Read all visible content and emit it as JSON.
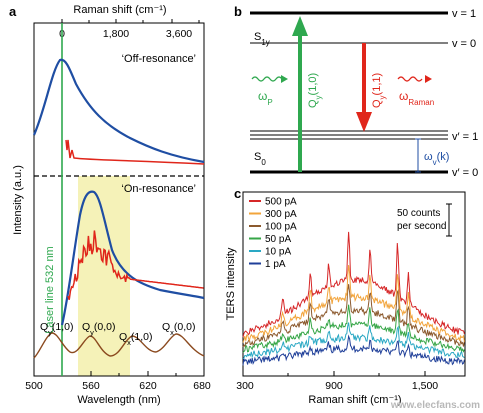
{
  "panel_a": {
    "letter": "a",
    "top_axis_label": "Raman shift (cm⁻¹)",
    "top_ticks": [
      "0",
      "1,800",
      "3,600"
    ],
    "bottom_axis_label": "Wavelength (nm)",
    "bottom_ticks": [
      "500",
      "560",
      "620",
      "680"
    ],
    "y_label": "Intensity (a.u.)",
    "off_label": "‘Off-resonance’",
    "on_label": "‘On-resonance’",
    "laser_label": "Laser line 532 nm",
    "absorption_labels": [
      "Q",
      "Q",
      "Q",
      "Q"
    ],
    "colors": {
      "blue": "#1f4ea3",
      "red": "#e0261b",
      "green": "#2fa84f",
      "brown": "#8b4a1f",
      "highlight": "#f3f0b4"
    }
  },
  "panel_b": {
    "letter": "b",
    "state_s1": "S",
    "state_s1_sub": "1y",
    "state_s0": "S",
    "state_s0_sub": "0",
    "levels_upper": [
      "v = 1",
      "v = 0"
    ],
    "levels_lower": [
      "v′ = 1",
      "v′ = 0"
    ],
    "omega_p": "ω",
    "omega_p_sub": "P",
    "omega_raman": "ω",
    "omega_raman_sub": "Raman",
    "qy10": "Q",
    "qy10_sub": "y",
    "qy10_rest": "(1,0)",
    "qy11": "Q",
    "qy11_sub": "y",
    "qy11_rest": "(1,1)",
    "omega_v": "ω",
    "omega_v_sub": "v",
    "omega_v_rest": "(k)"
  },
  "panel_c": {
    "letter": "c",
    "y_label": "TERS intensity",
    "x_label": "Raman shift (cm⁻¹)",
    "x_ticks": [
      "300",
      "900",
      "1,500"
    ],
    "scale_bar_label_1": "50 counts",
    "scale_bar_label_2": "per second"
  },
  "watermark": "www.elecfans.com",
  "chart_data": [
    {
      "type": "line",
      "panel": "a",
      "xlabel": "Wavelength (nm)",
      "x2label": "Raman shift (cm⁻¹)",
      "ylabel": "Intensity (a.u.)",
      "xlim": [
        500,
        680
      ],
      "x2_ticks": [
        0,
        1800,
        3600
      ],
      "laser_line_nm": 532,
      "highlight_nm": [
        548,
        573
      ],
      "series": [
        {
          "name": "Off-resonance (blue)",
          "x": [
            528,
            533,
            540,
            550,
            560,
            575,
            600,
            630,
            660,
            678
          ],
          "y": [
            0.5,
            0.95,
            0.92,
            0.75,
            0.55,
            0.4,
            0.25,
            0.15,
            0.08,
            0.05
          ]
        },
        {
          "name": "On-resonance (blue)",
          "x": [
            530,
            535,
            545,
            555,
            562,
            570,
            585,
            610,
            640,
            678
          ],
          "y": [
            0.05,
            0.2,
            0.55,
            0.85,
            0.92,
            0.8,
            0.5,
            0.3,
            0.2,
            0.15
          ]
        }
      ],
      "annotations": [
        "Q(1,0)",
        "Q(0,0)",
        "Q(1,0)",
        "Q(0,0)"
      ]
    },
    {
      "type": "line",
      "panel": "c",
      "xlabel": "Raman shift (cm⁻¹)",
      "ylabel": "TERS intensity",
      "xlim": [
        300,
        1750
      ],
      "x_ticks": [
        300,
        900,
        1500
      ],
      "series": [
        {
          "name": "500 pA",
          "color": "#d62728",
          "scale": 1.0,
          "offset": 0.36
        },
        {
          "name": "300 pA",
          "color": "#f2a43b",
          "scale": 0.78,
          "offset": 0.3
        },
        {
          "name": "100 pA",
          "color": "#8c5a2e",
          "scale": 0.62,
          "offset": 0.25
        },
        {
          "name": "50 pA",
          "color": "#36a647",
          "scale": 0.46,
          "offset": 0.18
        },
        {
          "name": "10 pA",
          "color": "#2aa8c4",
          "scale": 0.33,
          "offset": 0.1
        },
        {
          "name": "1 pA",
          "color": "#1f3f99",
          "scale": 0.25,
          "offset": 0.0
        }
      ],
      "peaks_cm": [
        560,
        740,
        860,
        990,
        1130,
        1310,
        1380
      ],
      "scale_bar": "50 counts per second"
    }
  ]
}
